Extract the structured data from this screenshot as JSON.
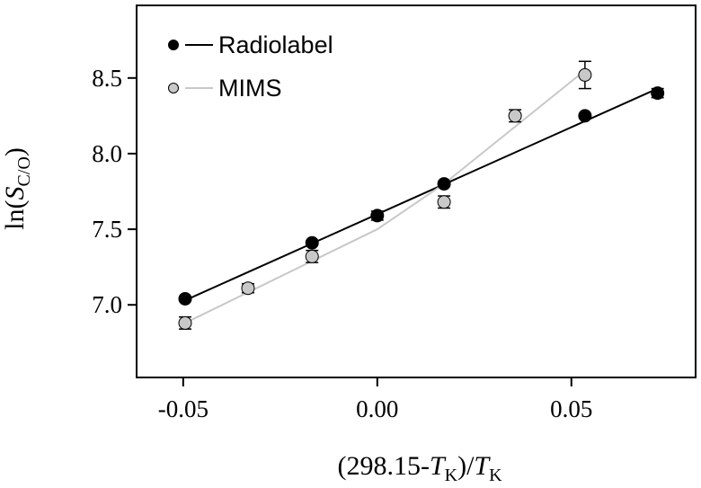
{
  "chart_data": {
    "type": "scatter",
    "xlabel": {
      "main": "(298.15-",
      "var1": "T",
      "sub1": "K",
      "mid": ")/",
      "var2": "T",
      "sub2": "K"
    },
    "ylabel": {
      "pre": "ln(",
      "var": "S",
      "sub": "C/O",
      "post": ")"
    },
    "xlim": [
      -0.062,
      0.082
    ],
    "ylim": [
      6.52,
      8.98
    ],
    "xticks": [
      {
        "value": -0.05,
        "label": "-0.05"
      },
      {
        "value": 0.0,
        "label": "0.00"
      },
      {
        "value": 0.05,
        "label": "0.05"
      }
    ],
    "yticks": [
      {
        "value": 7.0,
        "label": "7.0"
      },
      {
        "value": 7.5,
        "label": "7.5"
      },
      {
        "value": 8.0,
        "label": "8.0"
      },
      {
        "value": 8.5,
        "label": "8.5"
      }
    ],
    "legend_position": "top-left",
    "series": [
      {
        "name": "Radiolabel",
        "marker_color": "#000000",
        "line_color": "#000000",
        "points": [
          {
            "x": -0.0495,
            "y": 7.04,
            "err": 0.01
          },
          {
            "x": -0.0168,
            "y": 7.41,
            "err": 0.01
          },
          {
            "x": 0.0,
            "y": 7.59,
            "err": 0.03
          },
          {
            "x": 0.0172,
            "y": 7.8,
            "err": 0.01
          },
          {
            "x": 0.0535,
            "y": 8.25,
            "err": 0.01
          },
          {
            "x": 0.0722,
            "y": 8.4,
            "err": 0.03
          }
        ],
        "line": [
          {
            "x": -0.0495,
            "y": 7.03
          },
          {
            "x": 0.0722,
            "y": 8.43
          }
        ]
      },
      {
        "name": "MIMS",
        "marker_color": "#c8c8c8",
        "line_color": "#c8c8c8",
        "points": [
          {
            "x": -0.0495,
            "y": 6.88,
            "err": 0.04
          },
          {
            "x": -0.0333,
            "y": 7.11,
            "err": 0.03
          },
          {
            "x": -0.0168,
            "y": 7.32,
            "err": 0.04
          },
          {
            "x": 0.0172,
            "y": 7.68,
            "err": 0.04
          },
          {
            "x": 0.0355,
            "y": 8.25,
            "err": 0.04
          },
          {
            "x": 0.0535,
            "y": 8.52,
            "err": 0.09
          }
        ],
        "line": [
          {
            "x": -0.0495,
            "y": 6.88
          },
          {
            "x": 0.0,
            "y": 7.5
          },
          {
            "x": 0.0172,
            "y": 7.8
          },
          {
            "x": 0.0535,
            "y": 8.55
          }
        ]
      }
    ]
  }
}
